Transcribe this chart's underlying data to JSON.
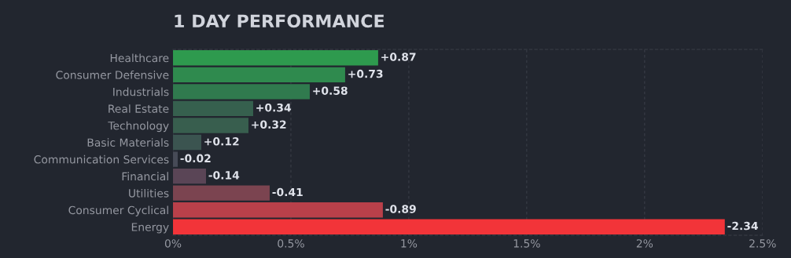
{
  "chart_data": {
    "type": "bar",
    "orientation": "horizontal",
    "title": "1 DAY PERFORMANCE",
    "categories": [
      "Healthcare",
      "Consumer Defensive",
      "Industrials",
      "Real Estate",
      "Technology",
      "Basic Materials",
      "Communication Services",
      "Financial",
      "Utilities",
      "Consumer Cyclical",
      "Energy"
    ],
    "values": [
      0.87,
      0.73,
      0.58,
      0.34,
      0.32,
      0.12,
      -0.02,
      -0.14,
      -0.41,
      -0.89,
      -2.34
    ],
    "base": [
      0,
      0,
      0,
      0,
      0,
      0,
      0.02,
      0.14,
      0.41,
      0.89,
      2.34
    ],
    "value_labels": [
      "+0.87",
      "+0.73",
      "+0.58",
      "+0.34",
      "+0.32",
      "+0.12",
      "-0.02",
      "-0.14",
      "-0.41",
      "-0.89",
      "-2.34"
    ],
    "colors": [
      "#2e9a4e",
      "#2f8a4e",
      "#307a4e",
      "#36604e",
      "#385e4e",
      "#3b5450",
      "#474b57",
      "#5a4556",
      "#7b4450",
      "#b9404a",
      "#f23439"
    ],
    "xlim": [
      0,
      2.5
    ],
    "xticks": [
      {
        "value": 0,
        "label": "0%"
      },
      {
        "value": 0.5,
        "label": "0.5%"
      },
      {
        "value": 1,
        "label": "1%"
      },
      {
        "value": 1.5,
        "label": "1.5%"
      },
      {
        "value": 2,
        "label": "2%"
      },
      {
        "value": 2.5,
        "label": "2.5%"
      }
    ],
    "grid": "x"
  }
}
